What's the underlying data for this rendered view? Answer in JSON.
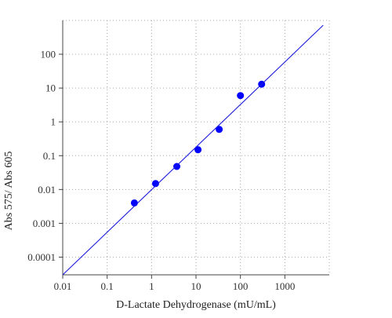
{
  "chart_data": {
    "type": "scatter",
    "title": "",
    "xlabel": "D-Lactate Dehydrogenase (mU/mL)",
    "ylabel": "Abs 575/ Abs 605",
    "x_scale": "log",
    "y_scale": "log",
    "xlim": [
      0.01,
      10000
    ],
    "ylim": [
      3e-05,
      1000
    ],
    "x_ticks": [
      0.01,
      0.1,
      1,
      10,
      100,
      1000
    ],
    "x_tick_labels": [
      "0.01",
      "0.1",
      "1",
      "10",
      "100",
      "1000"
    ],
    "y_ticks": [
      0.0001,
      0.001,
      0.01,
      0.1,
      1,
      10,
      100
    ],
    "y_tick_labels": [
      "0.0001",
      "0.001",
      "0.01",
      "0.1",
      "1",
      "10",
      "100"
    ],
    "grid": true,
    "series": [
      {
        "kind": "points",
        "x": [
          0.41,
          1.23,
          3.7,
          11.1,
          33.3,
          100,
          300
        ],
        "y": [
          0.004,
          0.015,
          0.048,
          0.15,
          0.6,
          6,
          13
        ],
        "color": "#0000ff"
      },
      {
        "kind": "line",
        "x": [
          0.01,
          7300
        ],
        "y": [
          3e-05,
          720
        ],
        "color": "#1a1adb"
      }
    ]
  }
}
